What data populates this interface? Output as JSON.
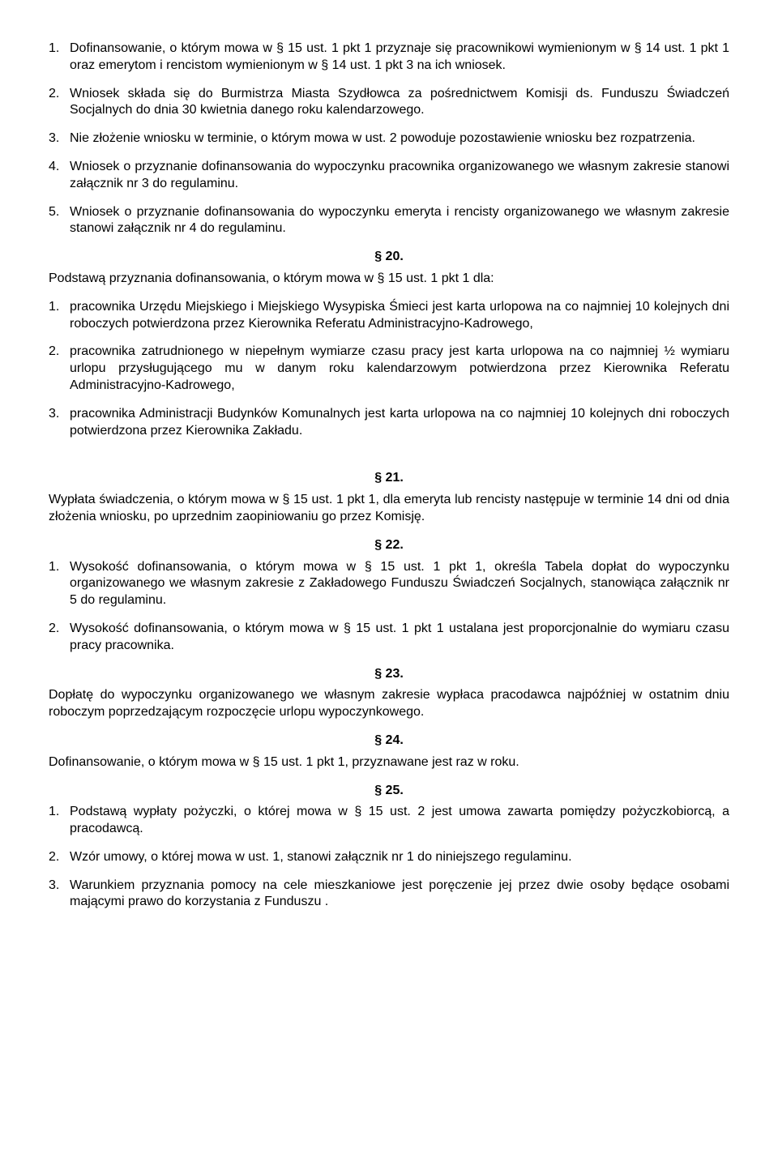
{
  "items": [
    {
      "num": "1.",
      "text": "Dofinansowanie, o którym mowa w § 15 ust. 1 pkt 1 przyznaje się pracownikowi wymienionym w § 14 ust. 1 pkt 1 oraz emerytom i rencistom wymienionym w § 14 ust. 1 pkt 3 na ich wniosek."
    },
    {
      "num": "2.",
      "text": "Wniosek składa się do Burmistrza Miasta Szydłowca za pośrednictwem Komisji ds. Funduszu Świadczeń Socjalnych do dnia 30 kwietnia danego roku kalendarzowego."
    },
    {
      "num": "3.",
      "text": "Nie złożenie wniosku w terminie, o którym mowa w ust. 2 powoduje pozostawienie wniosku bez rozpatrzenia."
    },
    {
      "num": "4.",
      "text": "Wniosek o przyznanie dofinansowania do wypoczynku pracownika organizowanego we własnym zakresie stanowi załącznik nr 3 do regulaminu."
    },
    {
      "num": "5.",
      "text": "Wniosek o przyznanie dofinansowania do wypoczynku emeryta i rencisty organizowanego we własnym zakresie stanowi załącznik nr 4 do regulaminu."
    }
  ],
  "s20": {
    "heading": "§ 20.",
    "intro": "Podstawą przyznania dofinansowania, o którym mowa w § 15 ust. 1 pkt 1 dla:",
    "items": [
      {
        "num": "1.",
        "text": "pracownika Urzędu Miejskiego i Miejskiego Wysypiska Śmieci jest karta urlopowa na co najmniej 10 kolejnych dni roboczych potwierdzona przez Kierownika Referatu Administracyjno-Kadrowego,"
      },
      {
        "num": "2.",
        "text": "pracownika zatrudnionego w niepełnym wymiarze czasu pracy jest karta urlopowa na co najmniej ½ wymiaru urlopu przysługującego mu w danym roku kalendarzowym potwierdzona przez Kierownika Referatu Administracyjno-Kadrowego,"
      },
      {
        "num": "3.",
        "text": "pracownika Administracji Budynków Komunalnych jest karta urlopowa na co najmniej 10 kolejnych dni roboczych potwierdzona przez Kierownika Zakładu."
      }
    ]
  },
  "s21": {
    "heading": "§ 21.",
    "text": "Wypłata świadczenia, o którym mowa w § 15 ust. 1 pkt 1, dla emeryta lub rencisty następuje w terminie 14 dni od dnia złożenia wniosku, po uprzednim zaopiniowaniu go przez Komisję."
  },
  "s22": {
    "heading": "§ 22.",
    "items": [
      {
        "num": "1.",
        "text": "Wysokość dofinansowania, o którym mowa w § 15 ust. 1 pkt 1, określa Tabela dopłat do wypoczynku organizowanego we własnym zakresie z Zakładowego Funduszu Świadczeń Socjalnych, stanowiąca załącznik nr 5 do regulaminu."
      },
      {
        "num": "2.",
        "text": "Wysokość dofinansowania, o którym mowa w § 15 ust. 1 pkt 1 ustalana jest proporcjonalnie do wymiaru czasu pracy pracownika."
      }
    ]
  },
  "s23": {
    "heading": "§ 23.",
    "text": "Dopłatę do wypoczynku organizowanego we własnym zakresie wypłaca pracodawca najpóźniej w ostatnim dniu roboczym poprzedzającym rozpoczęcie urlopu wypoczynkowego."
  },
  "s24": {
    "heading": "§ 24.",
    "text": "Dofinansowanie, o którym mowa w § 15 ust. 1 pkt 1, przyznawane jest raz w roku."
  },
  "s25": {
    "heading": "§ 25.",
    "items": [
      {
        "num": "1.",
        "text": "Podstawą wypłaty pożyczki, o której mowa w § 15 ust. 2 jest umowa zawarta pomiędzy pożyczkobiorcą, a pracodawcą."
      },
      {
        "num": "2.",
        "text": "Wzór umowy, o której mowa w ust. 1, stanowi załącznik nr 1 do niniejszego regulaminu."
      },
      {
        "num": "3.",
        "text": "Warunkiem przyznania pomocy na cele mieszkaniowe jest poręczenie jej przez dwie osoby będące osobami mającymi prawo do korzystania z Funduszu ."
      }
    ]
  }
}
